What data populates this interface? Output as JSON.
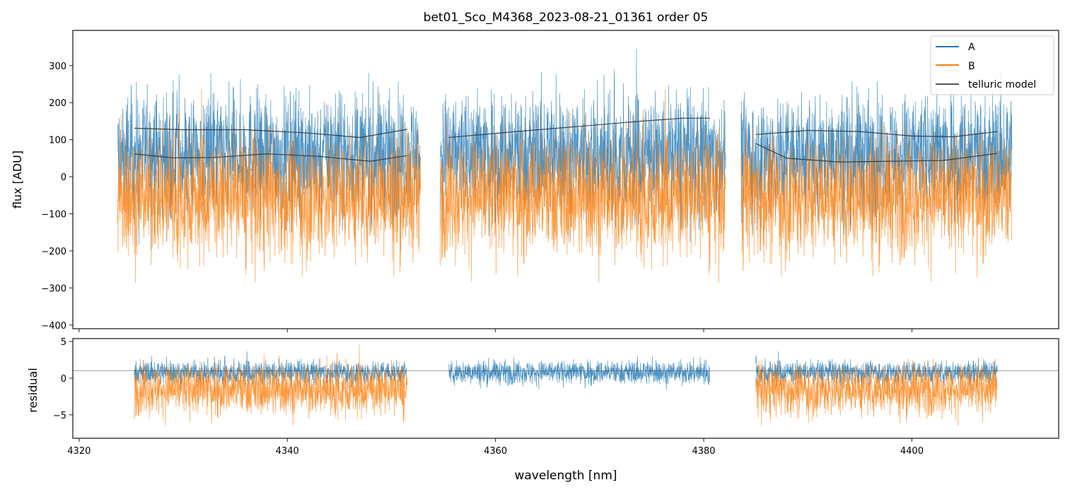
{
  "chart_data": [
    {
      "type": "line",
      "title": "bet01_Sco_M4368_2023-08-21_01361  order 05",
      "xlabel": "",
      "ylabel": "flux [ADU]",
      "xlim": [
        4319.4,
        4414.1
      ],
      "ylim": [
        -410,
        395
      ],
      "yticks": [
        300,
        200,
        100,
        0,
        -100,
        -200,
        -300,
        -400
      ],
      "ytick_labels": [
        "300",
        "200",
        "100",
        "0",
        "−100",
        "−200",
        "−300",
        "−400"
      ],
      "legend": {
        "placement": "top-right",
        "entries": [
          "A",
          "B",
          "telluric model"
        ]
      },
      "colors": {
        "A": "#1f77b4",
        "B": "#ff7f0e",
        "model": "#333333"
      },
      "series": [
        {
          "name": "A",
          "segments": [
            [
              4323.7,
              4352.8
            ],
            [
              4354.7,
              4382.1
            ],
            [
              4383.6,
              4409.6
            ]
          ],
          "mean": 60,
          "spread": 150
        },
        {
          "name": "B",
          "segments": [
            [
              4323.7,
              4352.8
            ],
            [
              4354.7,
              4382.1
            ],
            [
              4383.6,
              4409.6
            ]
          ],
          "mean": -50,
          "spread": 150
        },
        {
          "name": "telluric model A",
          "segments": [
            {
              "x": [
                4325.3,
                4330,
                4336,
                4342,
                4347,
                4351.5
              ],
              "y": [
                131,
                127,
                127,
                118,
                106,
                128
              ]
            },
            {
              "x": [
                4355.5,
                4362,
                4368,
                4374,
                4378,
                4380.6
              ],
              "y": [
                106,
                122,
                136,
                150,
                158,
                158
              ]
            },
            {
              "x": [
                4385,
                4390,
                4395,
                4400,
                4404,
                4408.2
              ],
              "y": [
                114,
                125,
                122,
                110,
                108,
                122
              ]
            }
          ]
        },
        {
          "name": "telluric model B",
          "segments": [
            {
              "x": [
                4325.3,
                4329,
                4333,
                4338,
                4343,
                4348,
                4351.5
              ],
              "y": [
                62,
                51,
                52,
                62,
                55,
                42,
                57
              ]
            },
            {
              "x": [
                4385,
                4388,
                4393,
                4398,
                4403,
                4408.2
              ],
              "y": [
                90,
                50,
                40,
                42,
                44,
                63
              ]
            }
          ]
        }
      ]
    },
    {
      "type": "line",
      "xlabel": "wavelength [nm]",
      "ylabel": "residual",
      "xlim": [
        4319.4,
        4414.1
      ],
      "ylim": [
        -8.2,
        5.4
      ],
      "xticks": [
        4320,
        4340,
        4360,
        4380,
        4400
      ],
      "xtick_labels": [
        "4320",
        "4340",
        "4360",
        "4380",
        "4400"
      ],
      "yticks": [
        5,
        0,
        -5
      ],
      "ytick_labels": [
        "5",
        "0",
        "−5"
      ],
      "reference_line": 1,
      "series": [
        {
          "name": "A",
          "segments": [
            [
              4325.3,
              4351.5
            ],
            [
              4355.5,
              4380.6
            ],
            [
              4385,
              4408.2
            ]
          ],
          "mean": 0.8,
          "spread": 1.5
        },
        {
          "name": "B",
          "segments": [
            [
              4325.3,
              4351.5
            ],
            [
              4385,
              4408.2
            ]
          ],
          "mean": -1.5,
          "spread": 3.2
        }
      ]
    }
  ]
}
